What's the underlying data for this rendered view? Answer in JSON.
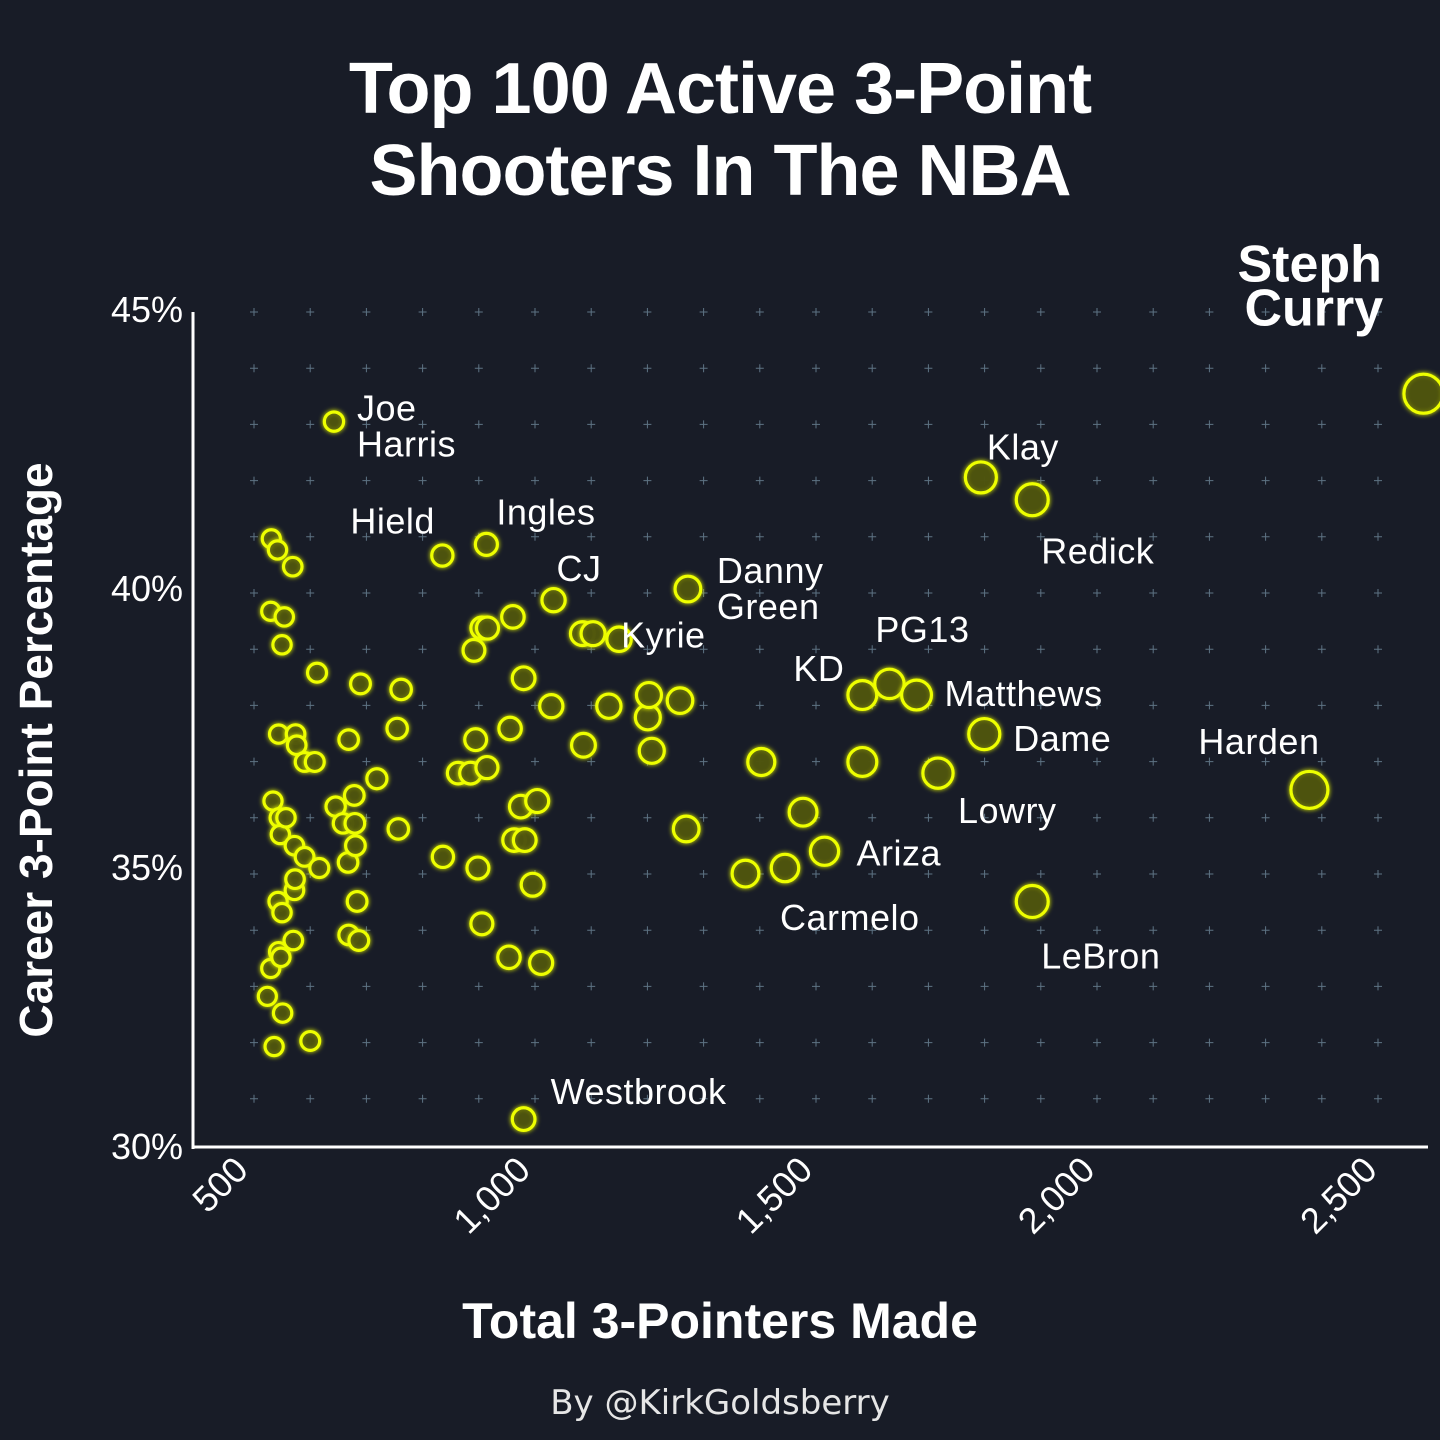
{
  "title_lines": [
    "Top 100 Active 3-Point",
    "Shooters In The NBA"
  ],
  "credit": "By @KirkGoldsberry",
  "colors": {
    "background": "#181c27",
    "accent": "#eeff00",
    "text": "#ffffff"
  },
  "chart_data": {
    "type": "scatter",
    "title": "Top 100 Active 3-Point Shooters In The NBA",
    "xlabel": "Total 3-Pointers Made",
    "ylabel": "Career 3-Point Percentage",
    "xlim": [
      400,
      2600
    ],
    "ylim": [
      30,
      45
    ],
    "x_ticks": [
      500,
      1000,
      1500,
      2000,
      2500
    ],
    "x_tick_labels": [
      "500",
      "1,000",
      "1,500",
      "2,000",
      "2,500"
    ],
    "y_ticks": [
      30,
      35,
      40,
      45
    ],
    "y_tick_labels": [
      "30%",
      "35%",
      "40%",
      "45%"
    ],
    "grid": true,
    "marker_size_encodes": "Total 3-Pointers Made",
    "points": [
      {
        "x": 2600,
        "y": 43.5,
        "label": "Steph Curry",
        "bold": true
      },
      {
        "x": 2398,
        "y": 36.4,
        "label": "Harden"
      },
      {
        "x": 1816,
        "y": 42.0,
        "label": "Klay"
      },
      {
        "x": 1907,
        "y": 41.6,
        "label": "Redick"
      },
      {
        "x": 1822,
        "y": 37.4,
        "label": "Dame"
      },
      {
        "x": 1740,
        "y": 36.7,
        "label": "Lowry"
      },
      {
        "x": 1907,
        "y": 34.4,
        "label": "LeBron"
      },
      {
        "x": 1702,
        "y": 38.1,
        "label": "Matthews"
      },
      {
        "x": 1654,
        "y": 38.3,
        "label": "PG13"
      },
      {
        "x": 1606,
        "y": 38.1,
        "label": "KD"
      },
      {
        "x": 1539,
        "y": 35.3,
        "label": "Ariza"
      },
      {
        "x": 1469,
        "y": 35.0,
        "label": "Carmelo"
      },
      {
        "x": 1297,
        "y": 40.0,
        "label": "Danny Green"
      },
      {
        "x": 1129,
        "y": 39.2,
        "label": "Kyrie"
      },
      {
        "x": 1059,
        "y": 39.8,
        "label": "CJ"
      },
      {
        "x": 940,
        "y": 40.8,
        "label": "Ingles"
      },
      {
        "x": 862,
        "y": 40.6,
        "label": "Hield"
      },
      {
        "x": 670,
        "y": 43.0,
        "label": "Joe Harris"
      },
      {
        "x": 1006,
        "y": 30.5,
        "label": "Westbrook"
      },
      {
        "x": 1175,
        "y": 39.1
      },
      {
        "x": 1110,
        "y": 39.2
      },
      {
        "x": 1228,
        "y": 38.1
      },
      {
        "x": 1283,
        "y": 38.0
      },
      {
        "x": 1226,
        "y": 37.7
      },
      {
        "x": 1233,
        "y": 37.1
      },
      {
        "x": 1157,
        "y": 37.9
      },
      {
        "x": 1112,
        "y": 37.2
      },
      {
        "x": 1055,
        "y": 37.9
      },
      {
        "x": 1006,
        "y": 38.4
      },
      {
        "x": 987,
        "y": 39.5
      },
      {
        "x": 932,
        "y": 39.3
      },
      {
        "x": 942,
        "y": 39.3
      },
      {
        "x": 918,
        "y": 38.9
      },
      {
        "x": 982,
        "y": 37.5
      },
      {
        "x": 912,
        "y": 36.7
      },
      {
        "x": 941,
        "y": 36.8
      },
      {
        "x": 890,
        "y": 36.7
      },
      {
        "x": 921,
        "y": 37.3
      },
      {
        "x": 863,
        "y": 35.2
      },
      {
        "x": 925,
        "y": 35.0
      },
      {
        "x": 1001,
        "y": 36.1
      },
      {
        "x": 1030,
        "y": 36.2
      },
      {
        "x": 1008,
        "y": 35.5
      },
      {
        "x": 989,
        "y": 35.5
      },
      {
        "x": 1022,
        "y": 34.7
      },
      {
        "x": 932,
        "y": 34.0
      },
      {
        "x": 980,
        "y": 33.4
      },
      {
        "x": 1037,
        "y": 33.3
      },
      {
        "x": 1294,
        "y": 35.7
      },
      {
        "x": 1399,
        "y": 34.9
      },
      {
        "x": 1427,
        "y": 36.9
      },
      {
        "x": 1501,
        "y": 36.0
      },
      {
        "x": 1606,
        "y": 36.9
      },
      {
        "x": 789,
        "y": 38.2
      },
      {
        "x": 782,
        "y": 37.5
      },
      {
        "x": 746,
        "y": 36.6
      },
      {
        "x": 784,
        "y": 35.7
      },
      {
        "x": 717,
        "y": 38.3
      },
      {
        "x": 696,
        "y": 37.3
      },
      {
        "x": 640,
        "y": 38.5
      },
      {
        "x": 706,
        "y": 36.3
      },
      {
        "x": 673,
        "y": 36.1
      },
      {
        "x": 686,
        "y": 35.8
      },
      {
        "x": 707,
        "y": 35.8
      },
      {
        "x": 708,
        "y": 35.4
      },
      {
        "x": 695,
        "y": 35.1
      },
      {
        "x": 711,
        "y": 34.4
      },
      {
        "x": 696,
        "y": 33.8
      },
      {
        "x": 714,
        "y": 33.7
      },
      {
        "x": 644,
        "y": 35.0
      },
      {
        "x": 636,
        "y": 36.9
      },
      {
        "x": 618,
        "y": 36.9
      },
      {
        "x": 604,
        "y": 37.2
      },
      {
        "x": 602,
        "y": 37.4
      },
      {
        "x": 572,
        "y": 37.4
      },
      {
        "x": 618,
        "y": 35.2
      },
      {
        "x": 600,
        "y": 35.4
      },
      {
        "x": 601,
        "y": 34.8
      },
      {
        "x": 600,
        "y": 34.6
      },
      {
        "x": 585,
        "y": 35.9
      },
      {
        "x": 573,
        "y": 35.9
      },
      {
        "x": 575,
        "y": 35.6
      },
      {
        "x": 562,
        "y": 36.2
      },
      {
        "x": 578,
        "y": 34.2
      },
      {
        "x": 571,
        "y": 34.4
      },
      {
        "x": 576,
        "y": 33.4
      },
      {
        "x": 598,
        "y": 33.7
      },
      {
        "x": 572,
        "y": 33.5
      },
      {
        "x": 558,
        "y": 33.2
      },
      {
        "x": 552,
        "y": 32.7
      },
      {
        "x": 579,
        "y": 32.4
      },
      {
        "x": 628,
        "y": 31.9
      },
      {
        "x": 564,
        "y": 31.8
      },
      {
        "x": 559,
        "y": 40.9
      },
      {
        "x": 570,
        "y": 40.7
      },
      {
        "x": 597,
        "y": 40.4
      },
      {
        "x": 558,
        "y": 39.6
      },
      {
        "x": 582,
        "y": 39.5
      },
      {
        "x": 578,
        "y": 39.0
      }
    ]
  }
}
